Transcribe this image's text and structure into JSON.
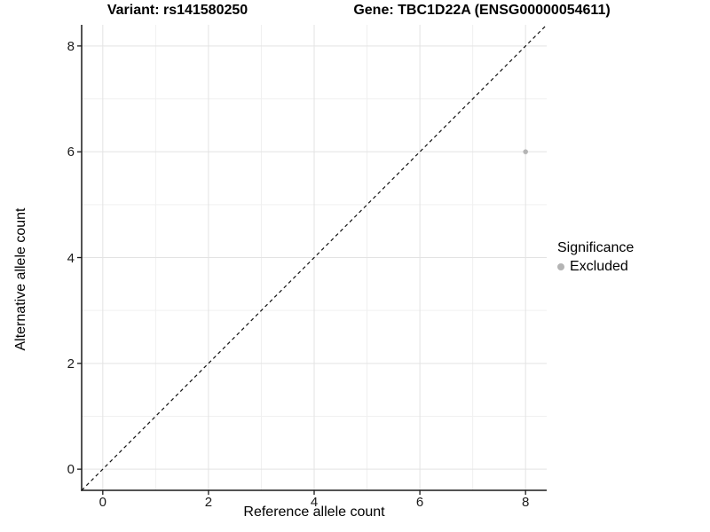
{
  "titles": {
    "left": "Variant: rs141580250",
    "right": "Gene: TBC1D22A (ENSG00000054611)"
  },
  "legend": {
    "title": "Significance",
    "items": [
      {
        "label": "Excluded",
        "color": "#b4b4b4"
      }
    ]
  },
  "chart_data": {
    "type": "scatter",
    "title": "Variant: rs141580250  Gene: TBC1D22A (ENSG00000054611)",
    "xlabel": "Reference allele count",
    "ylabel": "Alternative allele count",
    "xlim": [
      -0.4,
      8.4
    ],
    "ylim": [
      -0.4,
      8.4
    ],
    "x_ticks": [
      0,
      2,
      4,
      6,
      8
    ],
    "y_ticks": [
      0,
      2,
      4,
      6,
      8
    ],
    "grid": {
      "major_color": "#e3e3e3",
      "minor_color": "#f0f0f0",
      "minor_x": [
        1,
        3,
        5,
        7
      ],
      "minor_y": [
        1,
        3,
        5,
        7
      ]
    },
    "axis_color": "#1a1a1a",
    "reference_line": {
      "style": "dashed",
      "color": "#111111",
      "from": [
        -0.4,
        -0.4
      ],
      "to": [
        8.4,
        8.4
      ]
    },
    "series": [
      {
        "name": "Excluded",
        "color": "#b4b4b4",
        "points": [
          {
            "x": 8,
            "y": 6
          }
        ]
      }
    ],
    "legend_title": "Significance",
    "legend_position": "right",
    "background": "#ffffff"
  }
}
